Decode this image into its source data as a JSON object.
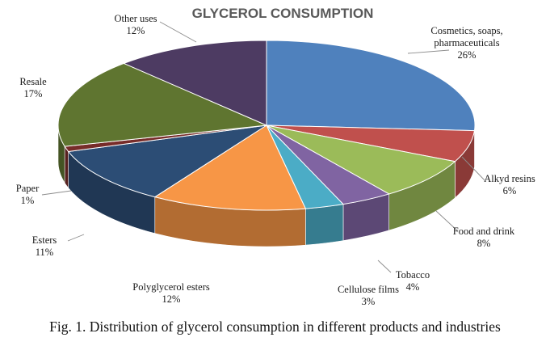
{
  "chart_data": {
    "type": "pie",
    "title": "GLYCEROL CONSUMPTION",
    "categories": [
      "Cosmetics, soaps, pharmaceuticals",
      "Alkyd resins",
      "Food and drink",
      "Tobacco",
      "Cellulose films",
      "Polyglycerol esters",
      "Esters",
      "Paper",
      "Resale",
      "Other uses"
    ],
    "values": [
      26,
      6,
      8,
      4,
      3,
      12,
      11,
      1,
      17,
      12
    ],
    "value_labels": [
      "26%",
      "6%",
      "8%",
      "4%",
      "3%",
      "12%",
      "11%",
      "1%",
      "17%",
      "12%"
    ],
    "colors": [
      "#4f81bd",
      "#c0504d",
      "#9bbb59",
      "#8064a2",
      "#4bacc6",
      "#f79646",
      "#2c4d75",
      "#772c2a",
      "#5f7530",
      "#4d3b62"
    ],
    "style": "3d-pie",
    "legend": "none"
  },
  "caption": "Fig. 1. Distribution of glycerol consumption in different products and industries"
}
